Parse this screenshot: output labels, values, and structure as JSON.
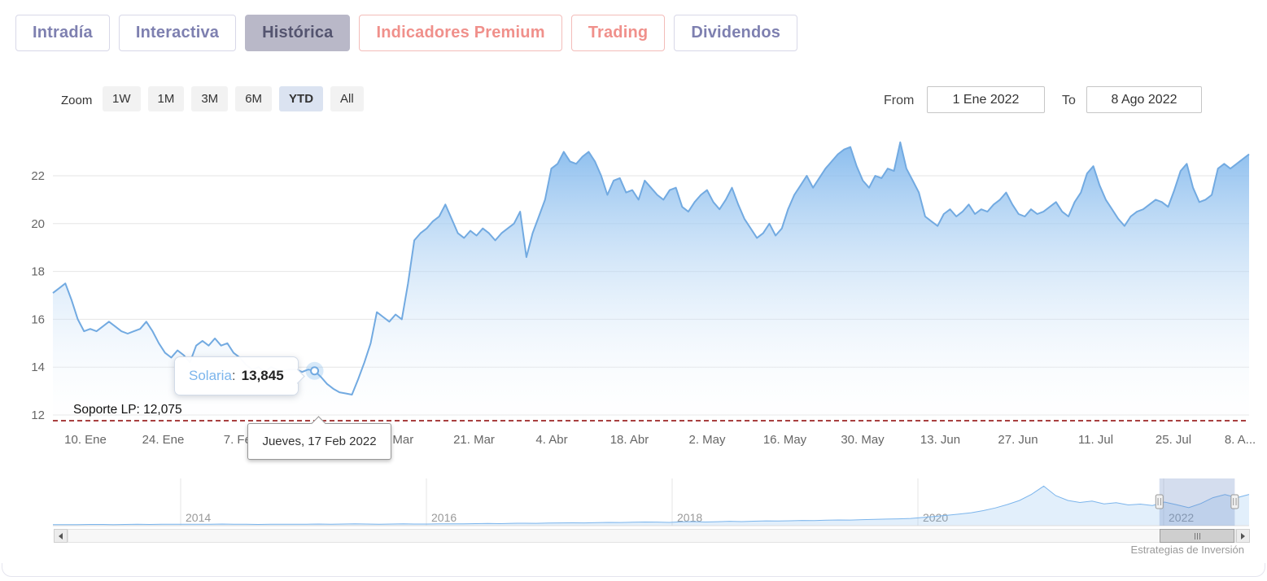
{
  "tabs": [
    {
      "label": "Intradía",
      "style": "purple",
      "active": false
    },
    {
      "label": "Interactiva",
      "style": "purple",
      "active": false
    },
    {
      "label": "Histórica",
      "style": "purple",
      "active": true
    },
    {
      "label": "Indicadores Premium",
      "style": "salmon",
      "active": false
    },
    {
      "label": "Trading",
      "style": "salmon",
      "active": false
    },
    {
      "label": "Dividendos",
      "style": "purple",
      "active": false
    }
  ],
  "toolbar": {
    "zoom_label": "Zoom",
    "zoom_buttons": [
      "1W",
      "1M",
      "3M",
      "6M",
      "YTD",
      "All"
    ],
    "active_zoom": "YTD",
    "from_label": "From",
    "from_value": "1 Ene 2022",
    "to_label": "To",
    "to_value": "8 Ago 2022"
  },
  "tooltip": {
    "series_name": "Solaria",
    "separator": ":",
    "value": "13,845",
    "date_label": "Jueves, 17 Feb 2022"
  },
  "support_line": {
    "label": "Soporte LP: 12,075",
    "value": 12.075,
    "color": "#8b0000"
  },
  "credit": "Estrategias de Inversión",
  "chart_data": {
    "type": "area",
    "series": [
      {
        "name": "Solaria",
        "color": "#72aae1",
        "values": [
          17.1,
          17.3,
          17.5,
          16.8,
          16.0,
          15.5,
          15.6,
          15.5,
          15.7,
          15.9,
          15.7,
          15.5,
          15.4,
          15.5,
          15.6,
          15.9,
          15.5,
          15.0,
          14.6,
          14.4,
          14.7,
          14.5,
          14.2,
          14.9,
          15.1,
          14.9,
          15.2,
          14.9,
          15.0,
          14.6,
          14.4,
          14.1,
          13.9,
          14.0,
          13.8,
          14.0,
          13.9,
          13.85,
          13.9,
          13.9,
          13.8,
          13.9,
          13.845,
          13.6,
          13.3,
          13.1,
          12.95,
          12.9,
          12.85,
          13.5,
          14.2,
          15.0,
          16.3,
          16.1,
          15.9,
          16.2,
          16.0,
          17.5,
          19.3,
          19.6,
          19.8,
          20.1,
          20.3,
          20.8,
          20.2,
          19.6,
          19.4,
          19.7,
          19.5,
          19.8,
          19.6,
          19.3,
          19.6,
          19.8,
          20.0,
          20.5,
          18.6,
          19.6,
          20.3,
          21.0,
          22.3,
          22.5,
          23.0,
          22.6,
          22.5,
          22.8,
          23.0,
          22.6,
          22.0,
          21.2,
          21.8,
          21.9,
          21.3,
          21.4,
          21.0,
          21.8,
          21.5,
          21.2,
          21.0,
          21.4,
          21.5,
          20.7,
          20.5,
          20.9,
          21.2,
          21.4,
          20.9,
          20.6,
          21.0,
          21.5,
          20.8,
          20.2,
          19.8,
          19.4,
          19.6,
          20.0,
          19.5,
          19.8,
          20.6,
          21.2,
          21.6,
          22.0,
          21.5,
          21.9,
          22.3,
          22.6,
          22.9,
          23.1,
          23.2,
          22.4,
          21.8,
          21.5,
          22.0,
          21.9,
          22.3,
          22.2,
          23.4,
          22.3,
          21.8,
          21.3,
          20.3,
          20.1,
          19.9,
          20.4,
          20.6,
          20.3,
          20.5,
          20.8,
          20.4,
          20.6,
          20.5,
          20.8,
          21.0,
          21.3,
          20.8,
          20.4,
          20.3,
          20.6,
          20.4,
          20.5,
          20.7,
          20.9,
          20.5,
          20.3,
          20.9,
          21.3,
          22.1,
          22.4,
          21.6,
          21.0,
          20.6,
          20.2,
          19.9,
          20.3,
          20.5,
          20.6,
          20.8,
          21.0,
          20.9,
          20.7,
          21.4,
          22.2,
          22.5,
          21.5,
          20.9,
          21.0,
          21.2,
          22.3,
          22.5,
          22.3,
          22.5,
          22.7,
          22.9
        ]
      }
    ],
    "marker": {
      "index": 42,
      "value": 13.845,
      "date_label": "Jueves, 17 Feb 2022"
    },
    "y_ticks": [
      12,
      14,
      16,
      18,
      20,
      22
    ],
    "ylim": [
      11.8,
      23.9
    ],
    "x_tick_labels": [
      "10. Ene",
      "24. Ene",
      "7. Feb",
      "21. Feb",
      "7. Mar",
      "21. Mar",
      "4. Abr",
      "18. Abr",
      "2. May",
      "16. May",
      "30. May",
      "13. Jun",
      "27. Jun",
      "11. Jul",
      "25. Jul",
      "8. A..."
    ],
    "support_value": 12.075,
    "grid": true,
    "navigator": {
      "year_labels": [
        "2014",
        "2016",
        "2018",
        "2020",
        "2022"
      ],
      "ylim": [
        0,
        31
      ],
      "values": [
        0.7,
        0.8,
        0.8,
        0.9,
        0.9,
        0.8,
        0.9,
        1.0,
        0.9,
        1.0,
        1.0,
        1.1,
        1.0,
        1.1,
        1.2,
        1.1,
        1.0,
        0.9,
        1.0,
        1.1,
        1.0,
        1.1,
        1.2,
        1.1,
        1.2,
        1.3,
        1.2,
        1.1,
        1.2,
        1.3,
        1.2,
        1.2,
        1.3,
        1.4,
        1.3,
        1.5,
        1.6,
        1.5,
        1.7,
        1.8,
        1.7,
        1.9,
        2.0,
        2.1,
        2.0,
        2.2,
        2.4,
        2.3,
        2.5,
        2.7,
        2.6,
        2.4,
        2.8,
        3.0,
        2.7,
        2.9,
        3.2,
        3.0,
        3.3,
        3.5,
        3.4,
        3.6,
        3.8,
        3.7,
        4.0,
        4.2,
        4.1,
        4.4,
        4.6,
        4.8,
        5.0,
        5.3,
        6.0,
        6.8,
        7.6,
        8.5,
        9.5,
        11.0,
        13.0,
        15.5,
        18.5,
        23.0,
        29.0,
        22.0,
        18.5,
        17.0,
        18.0,
        16.0,
        16.8,
        15.2,
        15.8,
        14.8,
        17.3,
        15.3,
        13.2,
        16.2,
        20.5,
        22.8,
        20.5,
        22.9
      ],
      "selection": {
        "start_frac": 0.925,
        "end_frac": 0.988
      }
    }
  }
}
